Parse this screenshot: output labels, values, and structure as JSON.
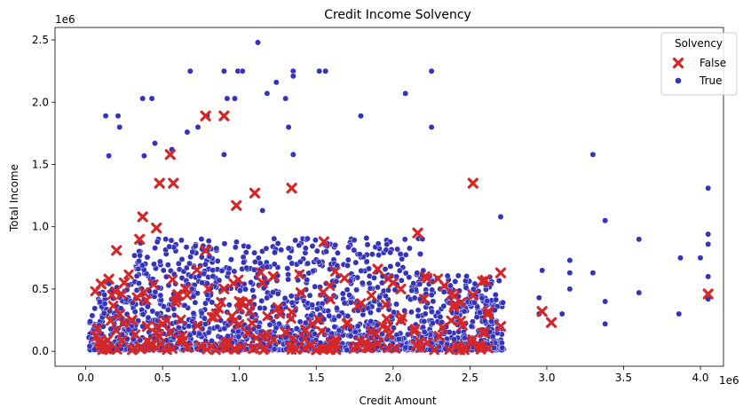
{
  "chart_data": {
    "type": "scatter",
    "title": "Credit Income Solvency",
    "xlabel": "Credit Amount",
    "ylabel": "Total Income",
    "x_offset_label": "1e6",
    "y_offset_label": "1e6",
    "xlim": [
      -0.2,
      4.15
    ],
    "ylim": [
      -0.12,
      2.6
    ],
    "x_ticks": [
      {
        "value": 0.0,
        "label": "0.0"
      },
      {
        "value": 0.5,
        "label": "0.5"
      },
      {
        "value": 1.0,
        "label": "1.0"
      },
      {
        "value": 1.5,
        "label": "1.5"
      },
      {
        "value": 2.0,
        "label": "2.0"
      },
      {
        "value": 2.5,
        "label": "2.5"
      },
      {
        "value": 3.0,
        "label": "3.0"
      },
      {
        "value": 3.5,
        "label": "3.5"
      },
      {
        "value": 4.0,
        "label": "4.0"
      }
    ],
    "y_ticks": [
      {
        "value": 0.0,
        "label": "0.0"
      },
      {
        "value": 0.5,
        "label": "0.5"
      },
      {
        "value": 1.0,
        "label": "1.0"
      },
      {
        "value": 1.5,
        "label": "1.5"
      },
      {
        "value": 2.0,
        "label": "2.0"
      },
      {
        "value": 2.5,
        "label": "2.5"
      }
    ],
    "grid": false,
    "legend": {
      "title": "Solvency",
      "placement": "top-right"
    },
    "series": [
      {
        "name": "False",
        "marker": "x",
        "color": "#d62728",
        "points": [
          [
            0.55,
            1.58
          ],
          [
            0.78,
            1.89
          ],
          [
            0.9,
            1.89
          ],
          [
            0.48,
            1.35
          ],
          [
            0.57,
            1.35
          ],
          [
            1.1,
            1.27
          ],
          [
            1.34,
            1.31
          ],
          [
            0.98,
            1.17
          ],
          [
            0.37,
            1.08
          ],
          [
            0.46,
            0.99
          ],
          [
            0.35,
            0.9
          ],
          [
            0.2,
            0.81
          ],
          [
            2.52,
            1.35
          ],
          [
            2.16,
            0.95
          ],
          [
            1.55,
            0.88
          ],
          [
            0.78,
            0.81
          ],
          [
            1.22,
            0.6
          ],
          [
            0.1,
            0.54
          ],
          [
            0.15,
            0.58
          ],
          [
            0.25,
            0.55
          ],
          [
            0.65,
            0.5
          ],
          [
            0.9,
            0.5
          ],
          [
            1.15,
            0.55
          ],
          [
            1.4,
            0.47
          ],
          [
            1.9,
            0.66
          ],
          [
            2.0,
            0.55
          ],
          [
            2.05,
            0.5
          ],
          [
            2.6,
            0.57
          ],
          [
            2.7,
            0.63
          ],
          [
            2.62,
            0.32
          ],
          [
            4.05,
            0.46
          ],
          [
            2.97,
            0.32
          ],
          [
            3.03,
            0.23
          ],
          [
            2.52,
            0.45
          ],
          [
            2.7,
            0.2
          ],
          [
            2.3,
            0.12
          ],
          [
            2.15,
            0.05
          ],
          [
            2.18,
            0.03
          ],
          [
            1.9,
            0.06
          ],
          [
            1.6,
            0.06
          ],
          [
            1.3,
            0.15
          ],
          [
            1.43,
            0.17
          ],
          [
            0.66,
            0.03
          ],
          [
            0.75,
            0.04
          ],
          [
            0.1,
            0.05
          ],
          [
            0.4,
            0.2
          ],
          [
            0.5,
            0.22
          ],
          [
            0.3,
            0.25
          ],
          [
            0.85,
            0.3
          ],
          [
            1.0,
            0.4
          ],
          [
            1.25,
            0.35
          ],
          [
            0.6,
            0.45
          ],
          [
            0.95,
            0.28
          ],
          [
            1.7,
            0.22
          ],
          [
            2.05,
            0.25
          ]
        ]
      },
      {
        "name": "True",
        "marker": "o",
        "color": "#3333bb",
        "points": [
          [
            1.12,
            2.48
          ],
          [
            0.68,
            2.25
          ],
          [
            0.9,
            2.25
          ],
          [
            0.99,
            2.25
          ],
          [
            1.02,
            2.25
          ],
          [
            1.35,
            2.25
          ],
          [
            1.52,
            2.25
          ],
          [
            1.56,
            2.25
          ],
          [
            2.25,
            2.25
          ],
          [
            1.35,
            2.21
          ],
          [
            1.24,
            2.16
          ],
          [
            1.18,
            2.07
          ],
          [
            2.08,
            2.07
          ],
          [
            0.37,
            2.03
          ],
          [
            0.43,
            2.03
          ],
          [
            0.92,
            2.03
          ],
          [
            0.97,
            2.03
          ],
          [
            1.3,
            2.03
          ],
          [
            0.13,
            1.89
          ],
          [
            0.21,
            1.89
          ],
          [
            0.79,
            1.89
          ],
          [
            1.79,
            1.89
          ],
          [
            0.22,
            1.8
          ],
          [
            0.66,
            1.76
          ],
          [
            0.73,
            1.8
          ],
          [
            1.32,
            1.8
          ],
          [
            2.25,
            1.8
          ],
          [
            0.45,
            1.67
          ],
          [
            0.56,
            1.62
          ],
          [
            3.3,
            1.58
          ],
          [
            0.15,
            1.57
          ],
          [
            0.38,
            1.57
          ],
          [
            0.9,
            1.58
          ],
          [
            1.35,
            1.58
          ],
          [
            2.7,
            1.08
          ],
          [
            4.05,
            1.31
          ],
          [
            3.38,
            1.05
          ],
          [
            4.05,
            0.94
          ],
          [
            4.05,
            0.86
          ],
          [
            3.6,
            0.9
          ],
          [
            4.0,
            0.75
          ],
          [
            3.87,
            0.75
          ],
          [
            3.15,
            0.73
          ],
          [
            3.15,
            0.63
          ],
          [
            3.15,
            0.5
          ],
          [
            3.3,
            0.63
          ],
          [
            2.97,
            0.65
          ],
          [
            3.38,
            0.4
          ],
          [
            3.6,
            0.47
          ],
          [
            4.05,
            0.6
          ],
          [
            4.05,
            0.42
          ],
          [
            3.38,
            0.22
          ],
          [
            3.86,
            0.3
          ],
          [
            2.95,
            0.43
          ],
          [
            2.95,
            0.3
          ],
          [
            3.1,
            0.3
          ],
          [
            2.52,
            0.1
          ],
          [
            2.68,
            0.18
          ],
          [
            1.12,
            0.62
          ],
          [
            1.15,
            1.13
          ]
        ]
      }
    ]
  }
}
